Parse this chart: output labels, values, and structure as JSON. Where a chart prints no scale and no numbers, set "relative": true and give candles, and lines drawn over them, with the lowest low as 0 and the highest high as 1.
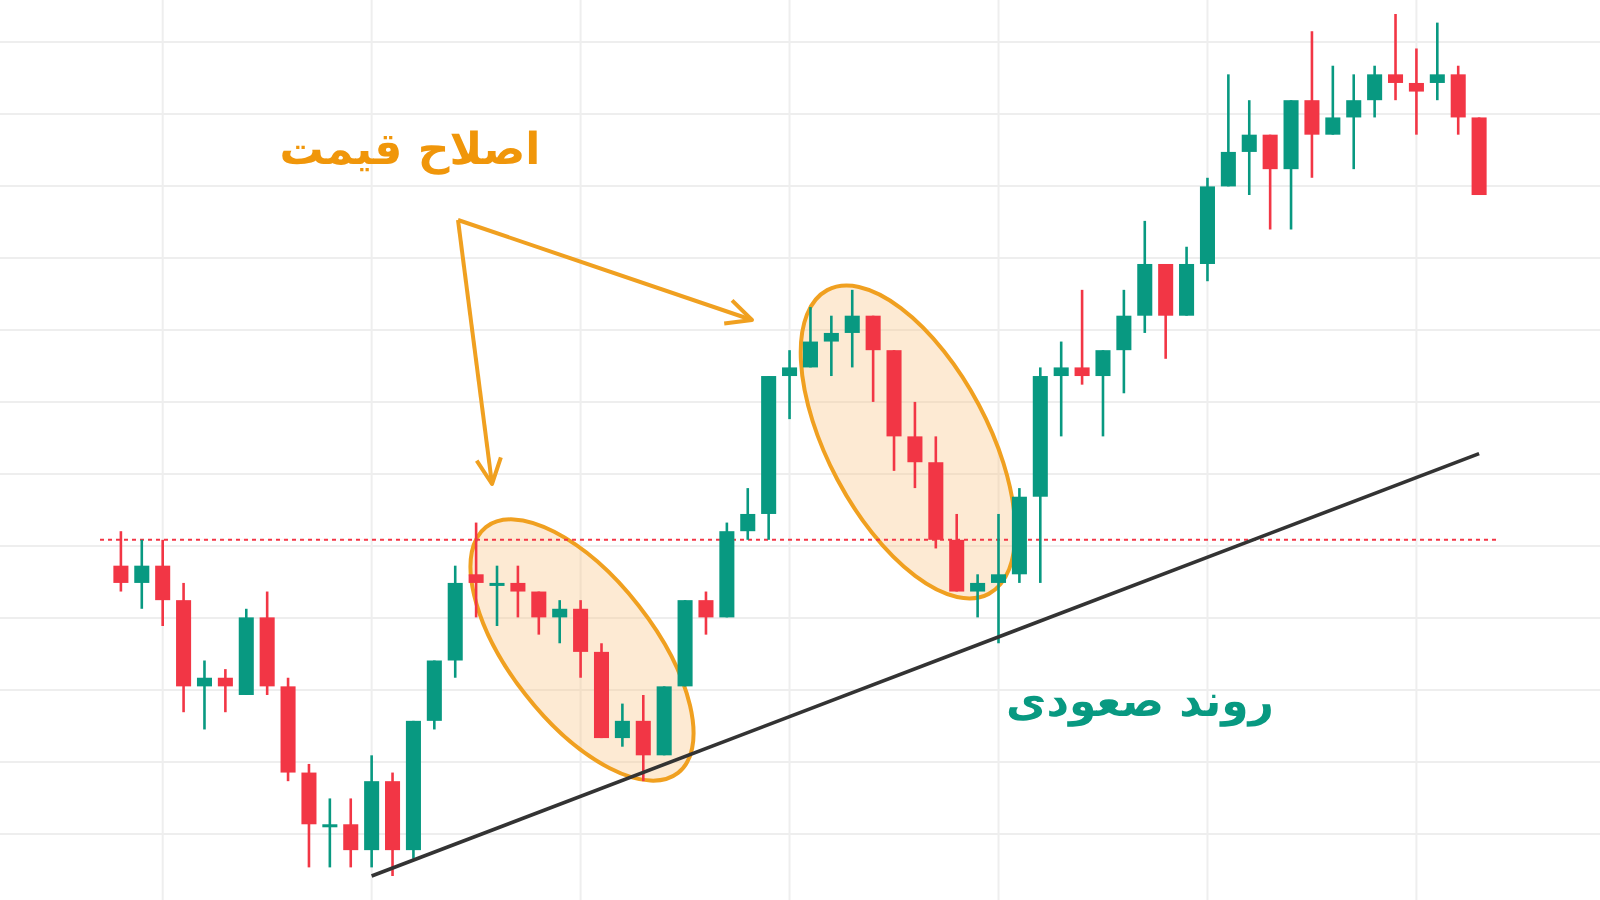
{
  "chart_data": {
    "type": "candlestick",
    "relative": true,
    "grid": true,
    "categories": [
      null,
      null,
      null,
      null,
      null,
      null,
      null,
      null,
      null,
      null,
      null,
      null,
      null,
      null,
      null,
      null,
      null,
      null,
      null,
      null,
      null,
      null,
      null,
      null,
      null,
      null,
      null,
      null,
      null,
      null,
      null,
      null,
      null,
      null,
      null,
      null,
      null,
      null,
      null,
      null,
      null,
      null,
      null,
      null,
      null,
      null,
      null,
      null,
      null,
      null,
      null,
      null,
      null,
      null,
      null,
      null,
      null,
      null,
      null,
      null,
      null,
      null,
      null,
      null,
      null,
      null
    ],
    "ohlc": [
      [
        0.36,
        0.4,
        0.33,
        0.34
      ],
      [
        0.34,
        0.39,
        0.31,
        0.36
      ],
      [
        0.36,
        0.39,
        0.29,
        0.32
      ],
      [
        0.32,
        0.34,
        0.19,
        0.22
      ],
      [
        0.22,
        0.25,
        0.17,
        0.23
      ],
      [
        0.23,
        0.24,
        0.19,
        0.22
      ],
      [
        0.21,
        0.31,
        0.21,
        0.3
      ],
      [
        0.3,
        0.33,
        0.21,
        0.22
      ],
      [
        0.22,
        0.23,
        0.11,
        0.12
      ],
      [
        0.12,
        0.13,
        0.01,
        0.06
      ],
      [
        0.06,
        0.09,
        0.01,
        0.06
      ],
      [
        0.06,
        0.09,
        0.01,
        0.03
      ],
      [
        0.03,
        0.14,
        0.01,
        0.11
      ],
      [
        0.11,
        0.12,
        0,
        0.03
      ],
      [
        0.03,
        0.18,
        0.02,
        0.18
      ],
      [
        0.18,
        0.25,
        0.17,
        0.25
      ],
      [
        0.25,
        0.36,
        0.23,
        0.34
      ],
      [
        0.35,
        0.41,
        0.3,
        0.34
      ],
      [
        0.34,
        0.36,
        0.29,
        0.34
      ],
      [
        0.34,
        0.36,
        0.3,
        0.33
      ],
      [
        0.33,
        0.33,
        0.28,
        0.3
      ],
      [
        0.3,
        0.32,
        0.27,
        0.31
      ],
      [
        0.31,
        0.32,
        0.23,
        0.26
      ],
      [
        0.26,
        0.27,
        0.16,
        0.16
      ],
      [
        0.16,
        0.2,
        0.15,
        0.18
      ],
      [
        0.18,
        0.21,
        0.11,
        0.14
      ],
      [
        0.14,
        0.22,
        0.14,
        0.22
      ],
      [
        0.22,
        0.32,
        0.22,
        0.32
      ],
      [
        0.32,
        0.33,
        0.28,
        0.3
      ],
      [
        0.3,
        0.41,
        0.3,
        0.4
      ],
      [
        0.4,
        0.45,
        0.39,
        0.42
      ],
      [
        0.42,
        0.58,
        0.39,
        0.58
      ],
      [
        0.58,
        0.61,
        0.53,
        0.59
      ],
      [
        0.59,
        0.66,
        0.59,
        0.62
      ],
      [
        0.62,
        0.65,
        0.58,
        0.63
      ],
      [
        0.63,
        0.68,
        0.59,
        0.65
      ],
      [
        0.65,
        0.65,
        0.55,
        0.61
      ],
      [
        0.61,
        0.61,
        0.47,
        0.51
      ],
      [
        0.51,
        0.55,
        0.45,
        0.48
      ],
      [
        0.48,
        0.51,
        0.38,
        0.39
      ],
      [
        0.39,
        0.42,
        0.33,
        0.33
      ],
      [
        0.33,
        0.35,
        0.3,
        0.34
      ],
      [
        0.34,
        0.42,
        0.27,
        0.35
      ],
      [
        0.35,
        0.45,
        0.34,
        0.44
      ],
      [
        0.44,
        0.59,
        0.34,
        0.58
      ],
      [
        0.58,
        0.62,
        0.51,
        0.59
      ],
      [
        0.59,
        0.68,
        0.57,
        0.58
      ],
      [
        0.58,
        0.61,
        0.51,
        0.61
      ],
      [
        0.61,
        0.68,
        0.56,
        0.65
      ],
      [
        0.65,
        0.76,
        0.63,
        0.71
      ],
      [
        0.71,
        0.71,
        0.6,
        0.65
      ],
      [
        0.65,
        0.73,
        0.65,
        0.71
      ],
      [
        0.71,
        0.81,
        0.69,
        0.8
      ],
      [
        0.8,
        0.93,
        0.8,
        0.84
      ],
      [
        0.84,
        0.9,
        0.79,
        0.86
      ],
      [
        0.86,
        0.86,
        0.75,
        0.82
      ],
      [
        0.82,
        0.9,
        0.75,
        0.9
      ],
      [
        0.9,
        0.98,
        0.81,
        0.86
      ],
      [
        0.86,
        0.94,
        0.86,
        0.88
      ],
      [
        0.88,
        0.93,
        0.82,
        0.9
      ],
      [
        0.9,
        0.94,
        0.88,
        0.93
      ],
      [
        0.93,
        1,
        0.9,
        0.92
      ],
      [
        0.92,
        0.96,
        0.86,
        0.91
      ],
      [
        0.92,
        0.99,
        0.9,
        0.93
      ],
      [
        0.93,
        0.94,
        0.86,
        0.88
      ],
      [
        0.88,
        0.88,
        0.79,
        0.79
      ]
    ],
    "series": [
      {
        "type": "line",
        "values": [
          null,
          null,
          null,
          null,
          null,
          null,
          null,
          null,
          null,
          null,
          null,
          null,
          0,
          null,
          null,
          null,
          null,
          null,
          null,
          null,
          null,
          null,
          null,
          null,
          null,
          null,
          null,
          null,
          null,
          null,
          null,
          null,
          null,
          null,
          null,
          null,
          null,
          null,
          null,
          null,
          null,
          null,
          null,
          null,
          null,
          null,
          null,
          null,
          null,
          null,
          null,
          null,
          null,
          null,
          null,
          null,
          null,
          null,
          null,
          null,
          null,
          null,
          null,
          null,
          null,
          0.49
        ],
        "color": "#333333"
      }
    ],
    "ref_lines": [
      {
        "axis": "y",
        "value": 0.39,
        "color": "#f23645",
        "line_style": "dotted"
      }
    ],
    "annotations": [
      "اصلاح قیمت",
      "روند صعودی"
    ]
  }
}
